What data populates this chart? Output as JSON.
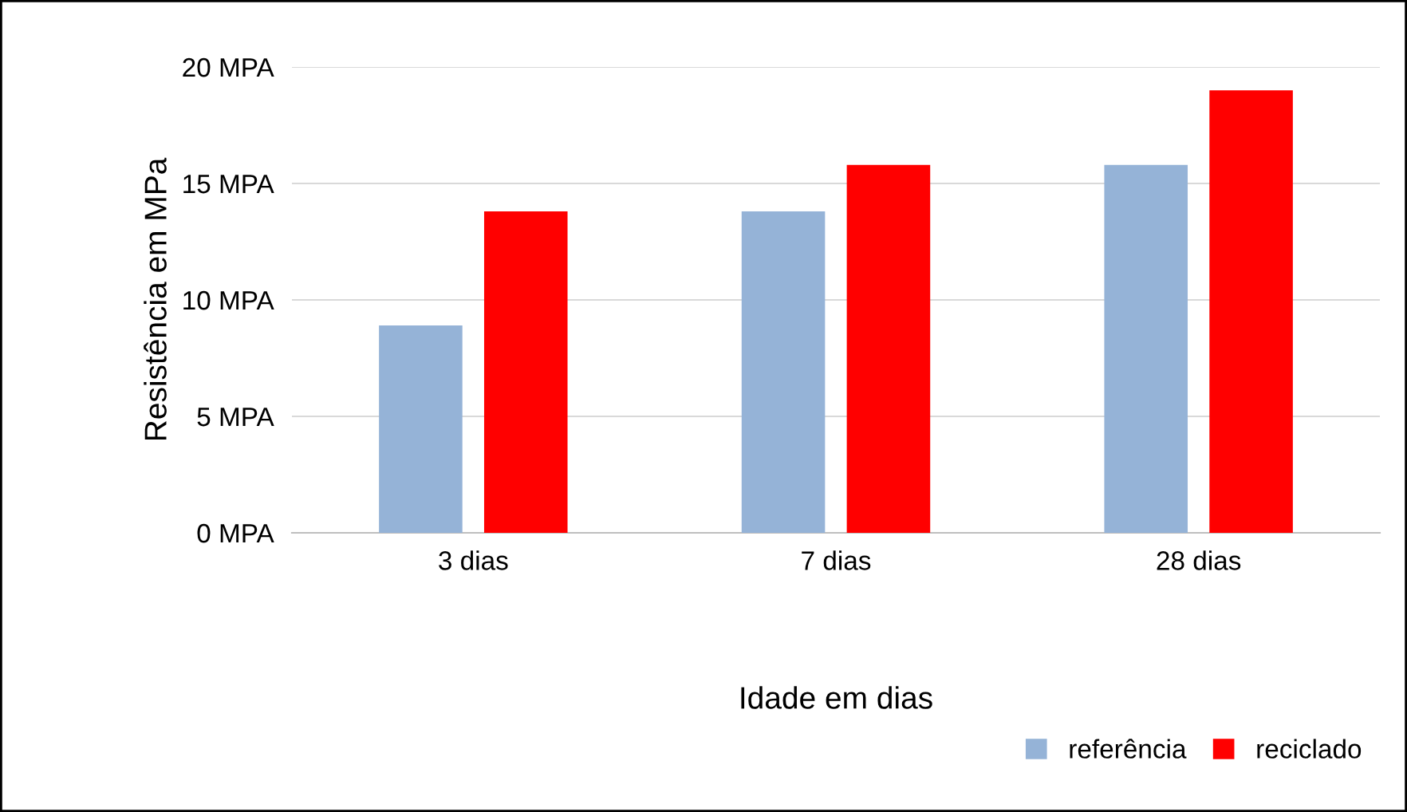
{
  "chart_data": {
    "type": "bar",
    "xlabel": "Idade em dias",
    "ylabel": "Resistência em MPa",
    "categories": [
      "3 dias",
      "7 dias",
      "28 dias"
    ],
    "series": [
      {
        "name": "referência",
        "color": "#95b3d7",
        "values": [
          8.9,
          13.8,
          15.8
        ]
      },
      {
        "name": "reciclado",
        "color": "#ff0000",
        "values": [
          13.8,
          15.8,
          19.0
        ]
      }
    ],
    "ylim": [
      0,
      20
    ],
    "yticks": [
      {
        "value": 0,
        "label": "0 MPA"
      },
      {
        "value": 5,
        "label": "5 MPA"
      },
      {
        "value": 10,
        "label": "10 MPA"
      },
      {
        "value": 15,
        "label": "15 MPA"
      },
      {
        "value": 20,
        "label": "20 MPA"
      }
    ],
    "grid": "y",
    "legend": "bottom right"
  }
}
